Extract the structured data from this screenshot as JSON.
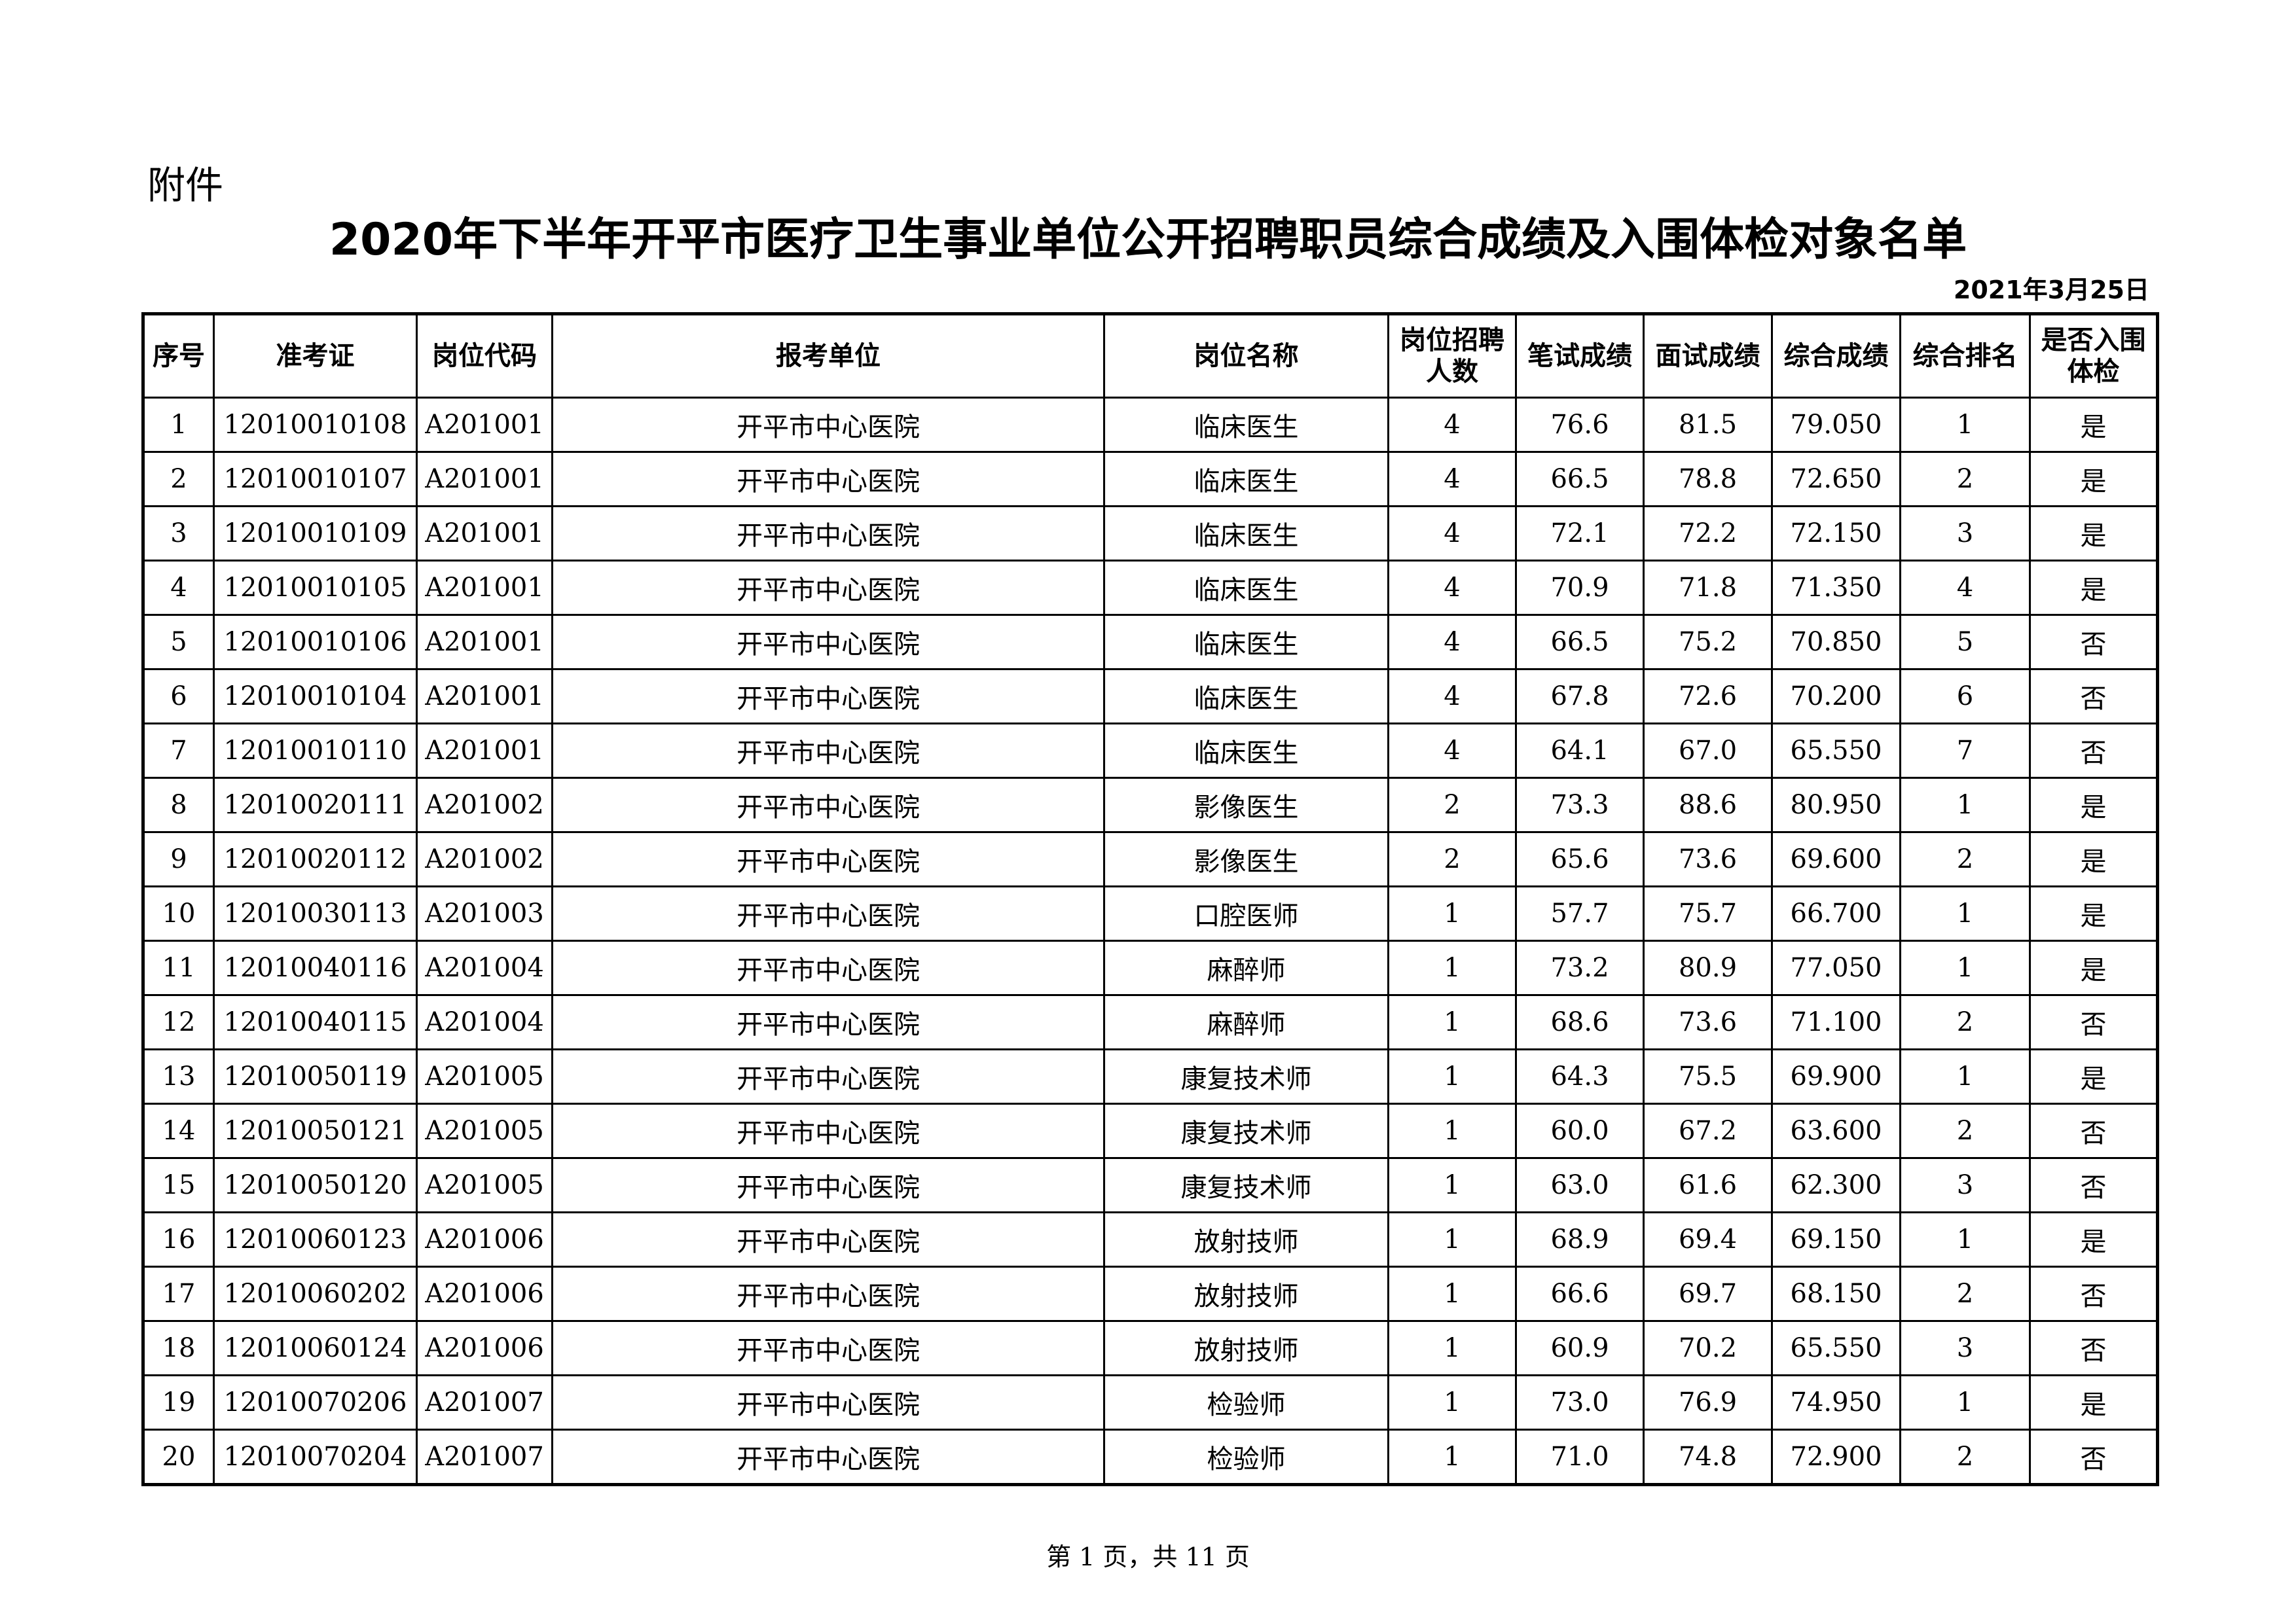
{
  "attachment_label": "附件",
  "title": "2020年下半年开平市医疗卫生事业单位公开招聘职员综合成绩及入围体检对象名单",
  "date": "2021年3月25日",
  "table": {
    "headers": [
      "序号",
      "准考证",
      "岗位代码",
      "报考单位",
      "岗位名称",
      "岗位招聘人数",
      "笔试成绩",
      "面试成绩",
      "综合成绩",
      "综合排名",
      "是否入围体检"
    ],
    "rows": [
      [
        "1",
        "12010010108",
        "A201001",
        "开平市中心医院",
        "临床医生",
        "4",
        "76.6",
        "81.5",
        "79.050",
        "1",
        "是"
      ],
      [
        "2",
        "12010010107",
        "A201001",
        "开平市中心医院",
        "临床医生",
        "4",
        "66.5",
        "78.8",
        "72.650",
        "2",
        "是"
      ],
      [
        "3",
        "12010010109",
        "A201001",
        "开平市中心医院",
        "临床医生",
        "4",
        "72.1",
        "72.2",
        "72.150",
        "3",
        "是"
      ],
      [
        "4",
        "12010010105",
        "A201001",
        "开平市中心医院",
        "临床医生",
        "4",
        "70.9",
        "71.8",
        "71.350",
        "4",
        "是"
      ],
      [
        "5",
        "12010010106",
        "A201001",
        "开平市中心医院",
        "临床医生",
        "4",
        "66.5",
        "75.2",
        "70.850",
        "5",
        "否"
      ],
      [
        "6",
        "12010010104",
        "A201001",
        "开平市中心医院",
        "临床医生",
        "4",
        "67.8",
        "72.6",
        "70.200",
        "6",
        "否"
      ],
      [
        "7",
        "12010010110",
        "A201001",
        "开平市中心医院",
        "临床医生",
        "4",
        "64.1",
        "67.0",
        "65.550",
        "7",
        "否"
      ],
      [
        "8",
        "12010020111",
        "A201002",
        "开平市中心医院",
        "影像医生",
        "2",
        "73.3",
        "88.6",
        "80.950",
        "1",
        "是"
      ],
      [
        "9",
        "12010020112",
        "A201002",
        "开平市中心医院",
        "影像医生",
        "2",
        "65.6",
        "73.6",
        "69.600",
        "2",
        "是"
      ],
      [
        "10",
        "12010030113",
        "A201003",
        "开平市中心医院",
        "口腔医师",
        "1",
        "57.7",
        "75.7",
        "66.700",
        "1",
        "是"
      ],
      [
        "11",
        "12010040116",
        "A201004",
        "开平市中心医院",
        "麻醉师",
        "1",
        "73.2",
        "80.9",
        "77.050",
        "1",
        "是"
      ],
      [
        "12",
        "12010040115",
        "A201004",
        "开平市中心医院",
        "麻醉师",
        "1",
        "68.6",
        "73.6",
        "71.100",
        "2",
        "否"
      ],
      [
        "13",
        "12010050119",
        "A201005",
        "开平市中心医院",
        "康复技术师",
        "1",
        "64.3",
        "75.5",
        "69.900",
        "1",
        "是"
      ],
      [
        "14",
        "12010050121",
        "A201005",
        "开平市中心医院",
        "康复技术师",
        "1",
        "60.0",
        "67.2",
        "63.600",
        "2",
        "否"
      ],
      [
        "15",
        "12010050120",
        "A201005",
        "开平市中心医院",
        "康复技术师",
        "1",
        "63.0",
        "61.6",
        "62.300",
        "3",
        "否"
      ],
      [
        "16",
        "12010060123",
        "A201006",
        "开平市中心医院",
        "放射技师",
        "1",
        "68.9",
        "69.4",
        "69.150",
        "1",
        "是"
      ],
      [
        "17",
        "12010060202",
        "A201006",
        "开平市中心医院",
        "放射技师",
        "1",
        "66.6",
        "69.7",
        "68.150",
        "2",
        "否"
      ],
      [
        "18",
        "12010060124",
        "A201006",
        "开平市中心医院",
        "放射技师",
        "1",
        "60.9",
        "70.2",
        "65.550",
        "3",
        "否"
      ],
      [
        "19",
        "12010070206",
        "A201007",
        "开平市中心医院",
        "检验师",
        "1",
        "73.0",
        "76.9",
        "74.950",
        "1",
        "是"
      ],
      [
        "20",
        "12010070204",
        "A201007",
        "开平市中心医院",
        "检验师",
        "1",
        "71.0",
        "74.8",
        "72.900",
        "2",
        "否"
      ]
    ]
  },
  "footer": "第 1 页，共 11 页"
}
